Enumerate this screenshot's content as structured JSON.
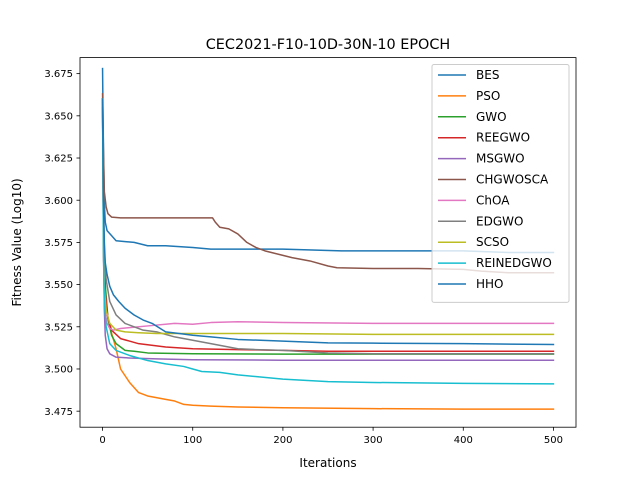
{
  "chart_data": {
    "type": "line",
    "title": "CEC2021-F10-10D-30N-10 EPOCH",
    "xlabel": "Iterations",
    "ylabel": "Fitness Value (Log10)",
    "xlim": [
      -25,
      525
    ],
    "ylim": [
      3.4655,
      3.6845
    ],
    "xticks": [
      0,
      100,
      200,
      300,
      400,
      500
    ],
    "yticks": [
      3.475,
      3.5,
      3.525,
      3.55,
      3.575,
      3.6,
      3.625,
      3.65,
      3.675
    ],
    "ytick_labels": [
      "3.475",
      "3.500",
      "3.525",
      "3.550",
      "3.575",
      "3.600",
      "3.625",
      "3.650",
      "3.675"
    ],
    "grid": false,
    "legend_position": "top-right",
    "series": [
      {
        "name": "BES",
        "color": "#1f77b4",
        "points": [
          [
            0,
            3.678
          ],
          [
            1,
            3.63
          ],
          [
            2,
            3.598
          ],
          [
            3,
            3.587
          ],
          [
            5,
            3.582
          ],
          [
            10,
            3.579
          ],
          [
            15,
            3.576
          ],
          [
            35,
            3.575
          ],
          [
            50,
            3.573
          ],
          [
            70,
            3.573
          ],
          [
            100,
            3.572
          ],
          [
            120,
            3.571
          ],
          [
            200,
            3.571
          ],
          [
            265,
            3.57
          ],
          [
            400,
            3.57
          ],
          [
            450,
            3.569
          ],
          [
            500,
            3.569
          ]
        ]
      },
      {
        "name": "PSO",
        "color": "#ff7f0e",
        "points": [
          [
            0,
            3.66
          ],
          [
            1,
            3.59
          ],
          [
            2,
            3.555
          ],
          [
            4,
            3.535
          ],
          [
            8,
            3.525
          ],
          [
            15,
            3.512
          ],
          [
            20,
            3.5
          ],
          [
            30,
            3.492
          ],
          [
            40,
            3.486
          ],
          [
            50,
            3.484
          ],
          [
            70,
            3.482
          ],
          [
            80,
            3.481
          ],
          [
            90,
            3.479
          ],
          [
            100,
            3.4785
          ],
          [
            120,
            3.478
          ],
          [
            150,
            3.4775
          ],
          [
            200,
            3.477
          ],
          [
            300,
            3.4765
          ],
          [
            400,
            3.4762
          ],
          [
            500,
            3.4762
          ]
        ]
      },
      {
        "name": "GWO",
        "color": "#2ca02c",
        "points": [
          [
            0,
            3.655
          ],
          [
            1,
            3.59
          ],
          [
            3,
            3.55
          ],
          [
            6,
            3.53
          ],
          [
            10,
            3.52
          ],
          [
            15,
            3.515
          ],
          [
            25,
            3.511
          ],
          [
            35,
            3.5105
          ],
          [
            50,
            3.5095
          ],
          [
            100,
            3.509
          ],
          [
            200,
            3.5088
          ],
          [
            300,
            3.5088
          ],
          [
            400,
            3.5088
          ],
          [
            500,
            3.5088
          ]
        ]
      },
      {
        "name": "REEGWO",
        "color": "#d62728",
        "points": [
          [
            0,
            3.66
          ],
          [
            1,
            3.58
          ],
          [
            3,
            3.545
          ],
          [
            6,
            3.53
          ],
          [
            10,
            3.523
          ],
          [
            20,
            3.518
          ],
          [
            40,
            3.515
          ],
          [
            70,
            3.513
          ],
          [
            100,
            3.512
          ],
          [
            150,
            3.5115
          ],
          [
            200,
            3.511
          ],
          [
            250,
            3.5105
          ],
          [
            300,
            3.5105
          ],
          [
            400,
            3.5105
          ],
          [
            500,
            3.5105
          ]
        ]
      },
      {
        "name": "MSGWO",
        "color": "#9467bd",
        "points": [
          [
            0,
            3.66
          ],
          [
            1,
            3.57
          ],
          [
            2,
            3.535
          ],
          [
            3,
            3.52
          ],
          [
            5,
            3.512
          ],
          [
            8,
            3.509
          ],
          [
            15,
            3.507
          ],
          [
            30,
            3.5065
          ],
          [
            60,
            3.506
          ],
          [
            100,
            3.5055
          ],
          [
            200,
            3.5052
          ],
          [
            300,
            3.5052
          ],
          [
            500,
            3.5052
          ]
        ]
      },
      {
        "name": "CHGWOSCA",
        "color": "#8c564b",
        "points": [
          [
            0,
            3.663
          ],
          [
            1,
            3.63
          ],
          [
            2,
            3.605
          ],
          [
            4,
            3.596
          ],
          [
            6,
            3.592
          ],
          [
            10,
            3.59
          ],
          [
            20,
            3.5895
          ],
          [
            60,
            3.5895
          ],
          [
            100,
            3.5895
          ],
          [
            122,
            3.5895
          ],
          [
            125,
            3.587
          ],
          [
            130,
            3.584
          ],
          [
            140,
            3.583
          ],
          [
            150,
            3.58
          ],
          [
            160,
            3.575
          ],
          [
            170,
            3.572
          ],
          [
            180,
            3.57
          ],
          [
            195,
            3.568
          ],
          [
            210,
            3.566
          ],
          [
            230,
            3.564
          ],
          [
            250,
            3.561
          ],
          [
            260,
            3.56
          ],
          [
            300,
            3.5595
          ],
          [
            350,
            3.5595
          ],
          [
            400,
            3.559
          ],
          [
            420,
            3.558
          ],
          [
            450,
            3.557
          ],
          [
            500,
            3.557
          ]
        ]
      },
      {
        "name": "ChOA",
        "color": "#e377c2",
        "points": [
          [
            0,
            3.655
          ],
          [
            1,
            3.57
          ],
          [
            2,
            3.545
          ],
          [
            3,
            3.533
          ],
          [
            5,
            3.527
          ],
          [
            8,
            3.524
          ],
          [
            12,
            3.523
          ],
          [
            20,
            3.524
          ],
          [
            30,
            3.5245
          ],
          [
            50,
            3.5255
          ],
          [
            80,
            3.527
          ],
          [
            100,
            3.5265
          ],
          [
            120,
            3.5275
          ],
          [
            150,
            3.528
          ],
          [
            200,
            3.5275
          ],
          [
            300,
            3.527
          ],
          [
            400,
            3.527
          ],
          [
            500,
            3.527
          ]
        ]
      },
      {
        "name": "EDGWO",
        "color": "#7f7f7f",
        "points": [
          [
            0,
            3.66
          ],
          [
            1,
            3.6
          ],
          [
            2,
            3.57
          ],
          [
            4,
            3.553
          ],
          [
            8,
            3.54
          ],
          [
            15,
            3.532
          ],
          [
            25,
            3.527
          ],
          [
            35,
            3.525
          ],
          [
            45,
            3.523
          ],
          [
            60,
            3.522
          ],
          [
            80,
            3.519
          ],
          [
            100,
            3.517
          ],
          [
            120,
            3.515
          ],
          [
            150,
            3.512
          ],
          [
            170,
            3.5115
          ],
          [
            200,
            3.511
          ],
          [
            250,
            3.5095
          ],
          [
            300,
            3.509
          ],
          [
            400,
            3.509
          ],
          [
            500,
            3.509
          ]
        ]
      },
      {
        "name": "SCSO",
        "color": "#bcbd22",
        "points": [
          [
            0,
            3.66
          ],
          [
            1,
            3.57
          ],
          [
            2,
            3.548
          ],
          [
            4,
            3.535
          ],
          [
            8,
            3.527
          ],
          [
            15,
            3.523
          ],
          [
            25,
            3.522
          ],
          [
            40,
            3.5215
          ],
          [
            60,
            3.521
          ],
          [
            100,
            3.521
          ],
          [
            200,
            3.521
          ],
          [
            300,
            3.5205
          ],
          [
            400,
            3.5205
          ],
          [
            500,
            3.5205
          ]
        ]
      },
      {
        "name": "REINEDGWO",
        "color": "#17becf",
        "points": [
          [
            0,
            3.655
          ],
          [
            1,
            3.57
          ],
          [
            2,
            3.54
          ],
          [
            4,
            3.525
          ],
          [
            8,
            3.515
          ],
          [
            15,
            3.511
          ],
          [
            30,
            3.508
          ],
          [
            50,
            3.505
          ],
          [
            70,
            3.503
          ],
          [
            90,
            3.5015
          ],
          [
            100,
            3.5
          ],
          [
            110,
            3.4985
          ],
          [
            130,
            3.498
          ],
          [
            150,
            3.4965
          ],
          [
            200,
            3.494
          ],
          [
            250,
            3.4925
          ],
          [
            300,
            3.492
          ],
          [
            400,
            3.4915
          ],
          [
            500,
            3.4912
          ]
        ]
      },
      {
        "name": "HHO",
        "color": "#1f77b4",
        "points": [
          [
            0,
            3.66
          ],
          [
            1,
            3.6
          ],
          [
            2,
            3.575
          ],
          [
            3,
            3.563
          ],
          [
            5,
            3.556
          ],
          [
            8,
            3.549
          ],
          [
            12,
            3.544
          ],
          [
            18,
            3.54
          ],
          [
            25,
            3.536
          ],
          [
            35,
            3.532
          ],
          [
            45,
            3.529
          ],
          [
            55,
            3.527
          ],
          [
            70,
            3.522
          ],
          [
            85,
            3.521
          ],
          [
            100,
            3.52
          ],
          [
            120,
            3.519
          ],
          [
            150,
            3.5175
          ],
          [
            200,
            3.5165
          ],
          [
            250,
            3.5155
          ],
          [
            300,
            3.5153
          ],
          [
            400,
            3.515
          ],
          [
            500,
            3.5145
          ]
        ]
      }
    ]
  }
}
